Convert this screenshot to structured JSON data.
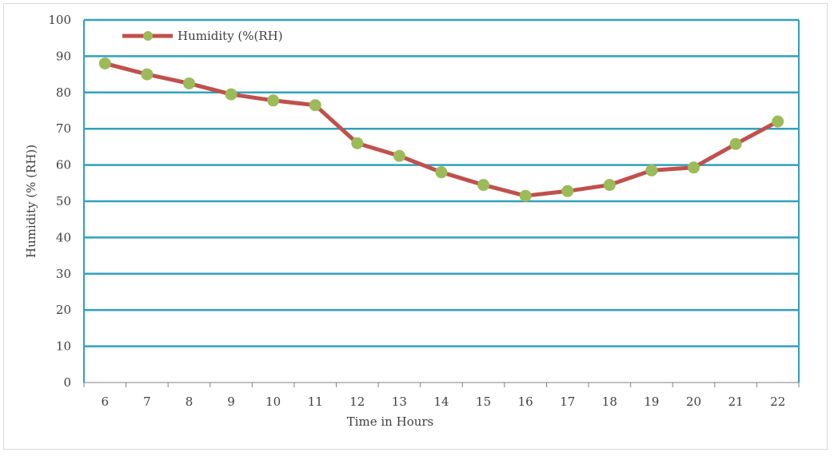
{
  "chart_data": {
    "type": "line",
    "title": "",
    "xlabel": "Time in Hours",
    "ylabel": "Humidity (% (RH))",
    "categories": [
      "6",
      "7",
      "8",
      "9",
      "10",
      "11",
      "12",
      "13",
      "14",
      "15",
      "16",
      "17",
      "18",
      "19",
      "20",
      "21",
      "22"
    ],
    "series": [
      {
        "name": "Humidity (%(RH)",
        "values": [
          88,
          85,
          82.5,
          79.5,
          77.8,
          76.5,
          66,
          62.5,
          58,
          54.5,
          51.5,
          52.8,
          54.5,
          58.5,
          59.3,
          65.8,
          72
        ]
      }
    ],
    "ylim": [
      0,
      100
    ],
    "yticks": [
      0,
      10,
      20,
      30,
      40,
      50,
      60,
      70,
      80,
      90,
      100
    ],
    "grid": true,
    "legend": "top-left",
    "colors": {
      "line": "#c0504d",
      "marker": "#9bbb59",
      "grid": "#31a1bc",
      "axis": "#808080"
    }
  }
}
